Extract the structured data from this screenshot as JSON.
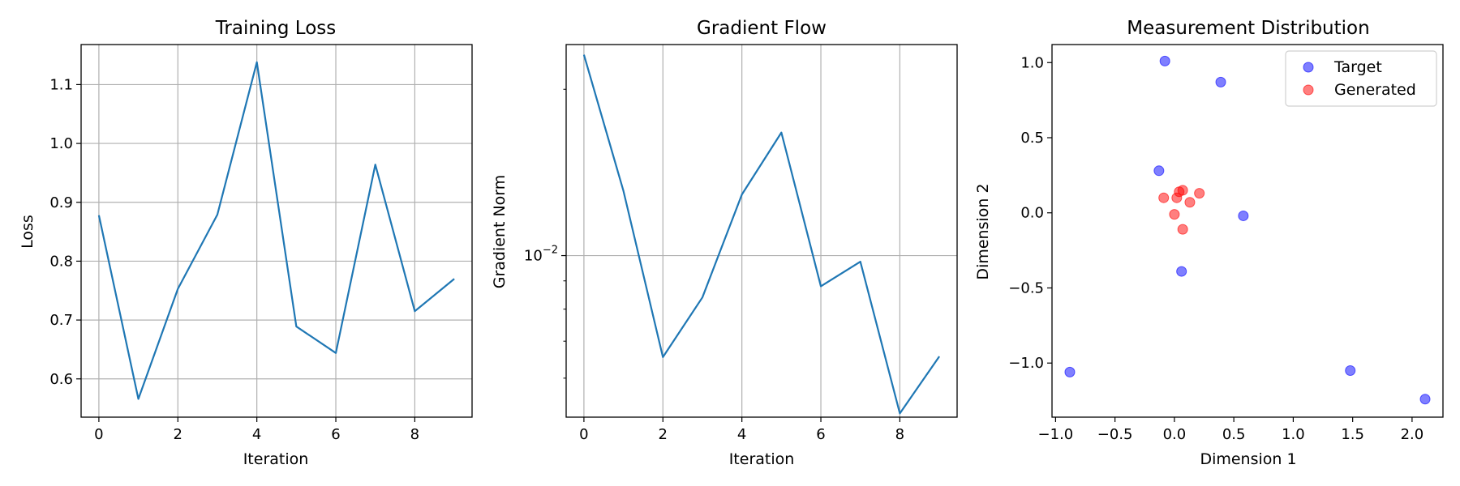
{
  "chart_data": [
    {
      "type": "line",
      "title": "Training Loss",
      "xlabel": "Iteration",
      "ylabel": "Loss",
      "x": [
        0,
        1,
        2,
        3,
        4,
        5,
        6,
        7,
        8,
        9
      ],
      "series": [
        {
          "values": [
            0.878,
            0.566,
            0.753,
            0.879,
            1.138,
            0.689,
            0.644,
            0.964,
            0.715,
            0.77
          ]
        }
      ],
      "xlim": [
        -0.45,
        9.45
      ],
      "ylim": [
        0.535,
        1.168
      ],
      "xticks": [
        0,
        2,
        4,
        6,
        8
      ],
      "yticks": [
        0.6,
        0.7,
        0.8,
        0.9,
        1.0,
        1.1
      ],
      "ytick_labels": [
        "0.6",
        "0.7",
        "0.8",
        "0.9",
        "1.0",
        "1.1"
      ],
      "grid": true,
      "color": "#1f77b4"
    },
    {
      "type": "line",
      "title": "Gradient Flow",
      "xlabel": "Iteration",
      "ylabel": "Gradient Norm",
      "yscale": "log",
      "x": [
        0,
        1,
        2,
        3,
        4,
        5,
        6,
        7,
        8,
        9
      ],
      "series": [
        {
          "values": [
            0.0231,
            0.0131,
            0.00655,
            0.0084,
            0.0129,
            0.0167,
            0.0088,
            0.00975,
            0.00518,
            0.00657
          ]
        }
      ],
      "xlim": [
        -0.45,
        9.45
      ],
      "ylim": [
        0.0051,
        0.0241
      ],
      "xticks": [
        0,
        2,
        4,
        6,
        8
      ],
      "yticks": [
        0.01
      ],
      "ytick_labels": [
        "10−2"
      ],
      "yminorticks": [
        0.006,
        0.007,
        0.008,
        0.009,
        0.02
      ],
      "grid": true,
      "color": "#1f77b4"
    },
    {
      "type": "scatter",
      "title": "Measurement Distribution",
      "xlabel": "Dimension 1",
      "ylabel": "Dimension 2",
      "xlim": [
        -1.03,
        2.26
      ],
      "ylim": [
        -1.36,
        1.12
      ],
      "xticks": [
        -1.0,
        -0.5,
        0.0,
        0.5,
        1.0,
        1.5,
        2.0
      ],
      "xtick_labels": [
        "−1.0",
        "−0.5",
        "0.0",
        "0.5",
        "1.0",
        "1.5",
        "2.0"
      ],
      "yticks": [
        -1.0,
        -0.5,
        0.0,
        0.5,
        1.0
      ],
      "ytick_labels": [
        "−1.0",
        "−0.5",
        "0.0",
        "0.5",
        "1.0"
      ],
      "grid": false,
      "legend_position": "top-right",
      "series": [
        {
          "name": "Target",
          "color": "#0000ff",
          "points": [
            [
              -0.88,
              -1.06
            ],
            [
              -0.08,
              1.01
            ],
            [
              0.39,
              0.87
            ],
            [
              -0.13,
              0.28
            ],
            [
              0.58,
              -0.02
            ],
            [
              0.06,
              -0.39
            ],
            [
              1.48,
              -1.05
            ],
            [
              2.11,
              -1.24
            ]
          ]
        },
        {
          "name": "Generated",
          "color": "#ff0000",
          "points": [
            [
              -0.09,
              0.1
            ],
            [
              0.0,
              -0.01
            ],
            [
              0.02,
              0.1
            ],
            [
              0.04,
              0.14
            ],
            [
              0.07,
              0.15
            ],
            [
              0.07,
              -0.11
            ],
            [
              0.13,
              0.07
            ],
            [
              0.21,
              0.13
            ]
          ]
        }
      ]
    }
  ]
}
